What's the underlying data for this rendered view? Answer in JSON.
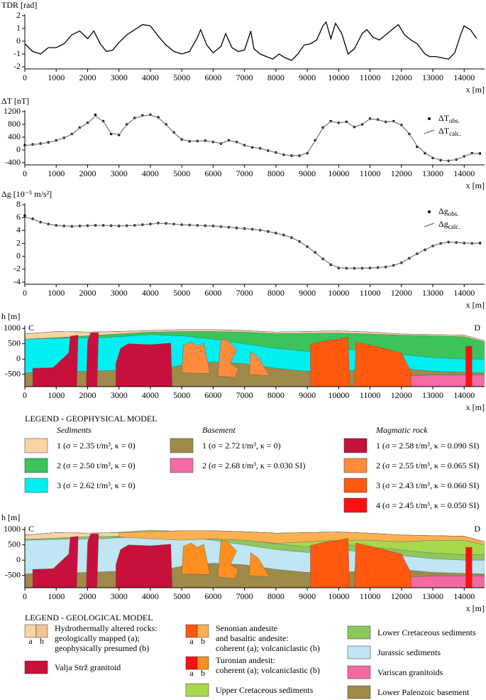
{
  "chart_data": [
    {
      "type": "line",
      "y_label": "TDR [rad]",
      "x_label": "x [m]",
      "color": "#000000",
      "x": [
        0,
        250,
        500,
        750,
        1000,
        1250,
        1500,
        1750,
        2000,
        2200,
        2400,
        2600,
        2800,
        3000,
        3250,
        3500,
        3750,
        4000,
        4250,
        4500,
        4750,
        5000,
        5250,
        5500,
        5600,
        5800,
        6000,
        6250,
        6400,
        6600,
        6800,
        7000,
        7200,
        7300,
        7500,
        7700,
        7900,
        8100,
        8300,
        8500,
        8700,
        8900,
        9100,
        9300,
        9500,
        9600,
        9750,
        9900,
        10100,
        10300,
        10500,
        10750,
        10900,
        11100,
        11300,
        11500,
        11750,
        11900,
        12100,
        12300,
        12500,
        12750,
        12900,
        13100,
        13300,
        13500,
        13700,
        13900,
        14000,
        14200,
        14400
      ],
      "values": [
        -0.2,
        -0.8,
        -1.0,
        -0.5,
        -0.5,
        -0.2,
        0.5,
        0.8,
        0.2,
        0.8,
        -0.2,
        -0.8,
        -0.7,
        -0.1,
        0.5,
        0.9,
        1.3,
        1.2,
        0.4,
        -0.3,
        -0.8,
        -1.0,
        -0.8,
        0.3,
        0.9,
        -0.3,
        -0.9,
        -0.4,
        0.6,
        -0.5,
        -0.8,
        -0.7,
        0.8,
        -0.6,
        -1.0,
        -1.2,
        -1.4,
        -1.0,
        -1.3,
        -1.5,
        -1.0,
        -0.3,
        -0.2,
        0.1,
        1.2,
        1.5,
        0.2,
        1.4,
        0.6,
        -1.0,
        -0.6,
        0.6,
        0.9,
        0.3,
        0.1,
        0.5,
        1.0,
        1.3,
        0.5,
        0.1,
        -0.2,
        -1.0,
        -1.2,
        -1.2,
        -1.3,
        -1.4,
        -0.9,
        0.6,
        1.2,
        0.9,
        0.2
      ],
      "xlim": [
        0,
        14650
      ],
      "xticks": [
        0,
        1000,
        2000,
        3000,
        4000,
        5000,
        6000,
        7000,
        8000,
        9000,
        10000,
        11000,
        12000,
        13000,
        14000
      ],
      "ylim": [
        -2,
        2
      ],
      "yticks": [
        -2,
        -1,
        0,
        1,
        2
      ]
    },
    {
      "type": "line",
      "y_label": "ΔT [nT]",
      "x_label": "x [m]",
      "legend": "right",
      "x": [
        0,
        250,
        500,
        750,
        1000,
        1250,
        1500,
        1750,
        2000,
        2250,
        2500,
        2750,
        3000,
        3250,
        3500,
        3750,
        4000,
        4250,
        4500,
        4750,
        5000,
        5250,
        5500,
        5750,
        6000,
        6250,
        6500,
        6750,
        7000,
        7250,
        7500,
        7750,
        8000,
        8250,
        8500,
        8750,
        9000,
        9250,
        9500,
        9750,
        10000,
        10250,
        10500,
        10750,
        11000,
        11250,
        11500,
        11750,
        12000,
        12250,
        12500,
        12750,
        13000,
        13250,
        13500,
        13750,
        14000,
        14250,
        14500
      ],
      "series": [
        {
          "name": "ΔT",
          "name_sub": "obs.",
          "marker": "dot",
          "color": "#000000",
          "values": [
            150,
            170,
            200,
            240,
            300,
            380,
            500,
            700,
            850,
            1100,
            900,
            500,
            470,
            800,
            1000,
            1080,
            1100,
            1020,
            800,
            550,
            330,
            270,
            280,
            290,
            250,
            200,
            300,
            250,
            150,
            80,
            50,
            -20,
            -80,
            -150,
            -180,
            -180,
            -100,
            300,
            700,
            900,
            850,
            880,
            720,
            800,
            980,
            950,
            880,
            900,
            780,
            500,
            100,
            -100,
            -250,
            -320,
            -340,
            -300,
            -200,
            -100,
            -110
          ]
        },
        {
          "name": "ΔT",
          "name_sub": "calc.",
          "marker": "line",
          "color": "#777777",
          "values": [
            140,
            165,
            195,
            235,
            295,
            375,
            490,
            690,
            840,
            1060,
            890,
            520,
            480,
            790,
            990,
            1070,
            1090,
            1010,
            790,
            540,
            330,
            275,
            280,
            285,
            250,
            210,
            290,
            245,
            150,
            85,
            50,
            -20,
            -85,
            -150,
            -175,
            -175,
            -90,
            280,
            690,
            890,
            850,
            870,
            720,
            800,
            970,
            945,
            880,
            890,
            775,
            510,
            130,
            -90,
            -245,
            -315,
            -335,
            -300,
            -200,
            -110,
            -110
          ]
        }
      ],
      "xlim": [
        0,
        14650
      ],
      "xticks": [
        0,
        1000,
        2000,
        3000,
        4000,
        5000,
        6000,
        7000,
        8000,
        9000,
        10000,
        11000,
        12000,
        13000,
        14000
      ],
      "ylim": [
        -400,
        1200
      ],
      "yticks": [
        -400,
        0,
        400,
        800,
        1200
      ]
    },
    {
      "type": "line",
      "y_label": "Δg [10⁻⁵ m/s²]",
      "x_label": "x [m]",
      "legend": "right",
      "x": [
        0,
        250,
        500,
        750,
        1000,
        1250,
        1500,
        1750,
        2000,
        2250,
        2500,
        2750,
        3000,
        3250,
        3500,
        3750,
        4000,
        4250,
        4500,
        4750,
        5000,
        5250,
        5500,
        5750,
        6000,
        6250,
        6500,
        6750,
        7000,
        7250,
        7500,
        7750,
        8000,
        8250,
        8500,
        8750,
        9000,
        9250,
        9500,
        9750,
        10000,
        10250,
        10500,
        10750,
        11000,
        11250,
        11500,
        11750,
        12000,
        12250,
        12500,
        12750,
        13000,
        13250,
        13500,
        13750,
        14000,
        14250,
        14500
      ],
      "series": [
        {
          "name": "Δg",
          "name_sub": "obs.",
          "marker": "dot",
          "color": "#000000",
          "values": [
            6.3,
            5.8,
            5.3,
            5.0,
            4.8,
            4.7,
            4.65,
            4.7,
            4.75,
            4.8,
            4.8,
            4.75,
            4.7,
            4.75,
            4.8,
            4.9,
            5.0,
            5.15,
            5.1,
            5.0,
            4.9,
            4.85,
            4.8,
            4.75,
            4.7,
            4.6,
            4.5,
            4.4,
            4.3,
            4.2,
            4.05,
            3.85,
            3.6,
            3.3,
            2.9,
            2.3,
            1.5,
            0.6,
            -0.4,
            -1.3,
            -1.8,
            -1.85,
            -1.85,
            -1.85,
            -1.8,
            -1.75,
            -1.65,
            -1.4,
            -1.0,
            -0.3,
            0.4,
            1.0,
            1.6,
            2.0,
            2.2,
            2.15,
            2.05,
            2.0,
            2.05
          ]
        },
        {
          "name": "Δg",
          "name_sub": "calc.",
          "marker": "line",
          "color": "#777777",
          "values": [
            6.1,
            5.75,
            5.3,
            5.0,
            4.8,
            4.7,
            4.65,
            4.7,
            4.75,
            4.78,
            4.78,
            4.75,
            4.72,
            4.75,
            4.8,
            4.9,
            5.0,
            5.1,
            5.08,
            5.0,
            4.9,
            4.85,
            4.8,
            4.75,
            4.7,
            4.6,
            4.5,
            4.4,
            4.3,
            4.2,
            4.05,
            3.85,
            3.6,
            3.3,
            2.9,
            2.3,
            1.5,
            0.6,
            -0.4,
            -1.25,
            -1.75,
            -1.85,
            -1.85,
            -1.85,
            -1.8,
            -1.75,
            -1.65,
            -1.4,
            -1.0,
            -0.3,
            0.4,
            1.0,
            1.6,
            2.0,
            2.2,
            2.15,
            2.05,
            2.0,
            2.05
          ]
        }
      ],
      "xlim": [
        0,
        14650
      ],
      "xticks": [
        0,
        1000,
        2000,
        3000,
        4000,
        5000,
        6000,
        7000,
        8000,
        9000,
        10000,
        11000,
        12000,
        13000,
        14000
      ],
      "ylim": [
        -4,
        8
      ],
      "yticks": [
        -4,
        -2,
        0,
        2,
        4,
        6,
        8
      ]
    },
    {
      "type": "section",
      "y_label": "h [m]",
      "x_label": "x [m]",
      "labels": [
        "C",
        "D"
      ],
      "xlim": [
        0,
        14650
      ],
      "xticks": [
        0,
        1000,
        2000,
        3000,
        4000,
        5000,
        6000,
        7000,
        8000,
        9000,
        10000,
        11000,
        12000,
        13000,
        14000
      ],
      "ylim": [
        -900,
        1050
      ],
      "yticks": [
        -500,
        0,
        500,
        1000
      ],
      "legend": {
        "title": "LEGEND - GEOPHYSICAL MODEL",
        "groups": [
          {
            "heading": "Sediments",
            "items": [
              {
                "label": "1 (σ = 2.35 t/m³, κ = 0)",
                "color": "#f9d3a6"
              },
              {
                "label": "2 (σ = 2.50 t/m³, κ = 0)",
                "color": "#3cc35a"
              },
              {
                "label": "3 (σ = 2.62 t/m³, κ = 0)",
                "color": "#00f0f0"
              }
            ]
          },
          {
            "heading": "Basement",
            "items": [
              {
                "label": "1 (σ = 2.72 t/m³, κ = 0)",
                "color": "#9e8a4a"
              },
              {
                "label": "2 (σ = 2.68 t/m³, κ = 0.030 SI)",
                "color": "#f76aa6"
              }
            ]
          },
          {
            "heading": "Magmatic rock",
            "items": [
              {
                "label": "1 (σ = 2.58 t/m³, κ = 0.090 SI)",
                "color": "#c8103c"
              },
              {
                "label": "2 (σ = 2.55 t/m³, κ = 0.065 SI)",
                "color": "#ff8c3c"
              },
              {
                "label": "3 (σ = 2.43 t/m³, κ = 0.060 SI)",
                "color": "#ff5a10"
              },
              {
                "label": "4 (σ = 2.45 t/m³, κ = 0.050 SI)",
                "color": "#ff1010"
              }
            ]
          }
        ]
      }
    },
    {
      "type": "section",
      "y_label": "h [m]",
      "x_label": "x [m]",
      "labels": [
        "C",
        "D"
      ],
      "xlim": [
        0,
        14650
      ],
      "xticks": [
        0,
        1000,
        2000,
        3000,
        4000,
        5000,
        6000,
        7000,
        8000,
        9000,
        10000,
        11000,
        12000,
        13000,
        14000
      ],
      "ylim": [
        -900,
        1050
      ],
      "yticks": [
        -500,
        0,
        500,
        1000
      ],
      "legend": {
        "title": "LEGEND - GEOLOGICAL MODEL",
        "columns": [
          [
            {
              "lines": [
                "Hydrothermally altered rocks:",
                "geologically mapped (a);",
                "geophysically presumed (b)"
              ],
              "colors": [
                "#f9d3a6",
                "#f3c493"
              ],
              "swatch_labels": [
                "a",
                "b"
              ]
            },
            {
              "lines": [
                "Valja Strž granitoid"
              ],
              "colors": [
                "#c8103c"
              ]
            }
          ],
          [
            {
              "lines": [
                "Senonian andesite",
                "and basaltic andesite:",
                "coherent (a); volcaniclastic (b)"
              ],
              "colors": [
                "#ff5a10",
                "#ffb050"
              ],
              "swatch_labels": [
                "a",
                "b"
              ]
            },
            {
              "lines": [
                "Turonian andesit:",
                "coherent (a); volcaniclastic (b)"
              ],
              "colors": [
                "#ff1010",
                "#ff9020"
              ],
              "swatch_labels": [
                "a",
                "b"
              ]
            },
            {
              "lines": [
                "Upper Cretaceous sediments"
              ],
              "colors": [
                "#a8d84c"
              ]
            }
          ],
          [
            {
              "lines": [
                "Lower Cretaceous sediments"
              ],
              "colors": [
                "#8cc860"
              ]
            },
            {
              "lines": [
                "Jurassic sediments"
              ],
              "colors": [
                "#bfe6f2"
              ]
            },
            {
              "lines": [
                "Variscan granitoids"
              ],
              "colors": [
                "#f26aa0"
              ]
            },
            {
              "lines": [
                "Lower Paleozoic basement"
              ],
              "colors": [
                "#9e8a4a"
              ]
            }
          ]
        ]
      }
    }
  ]
}
